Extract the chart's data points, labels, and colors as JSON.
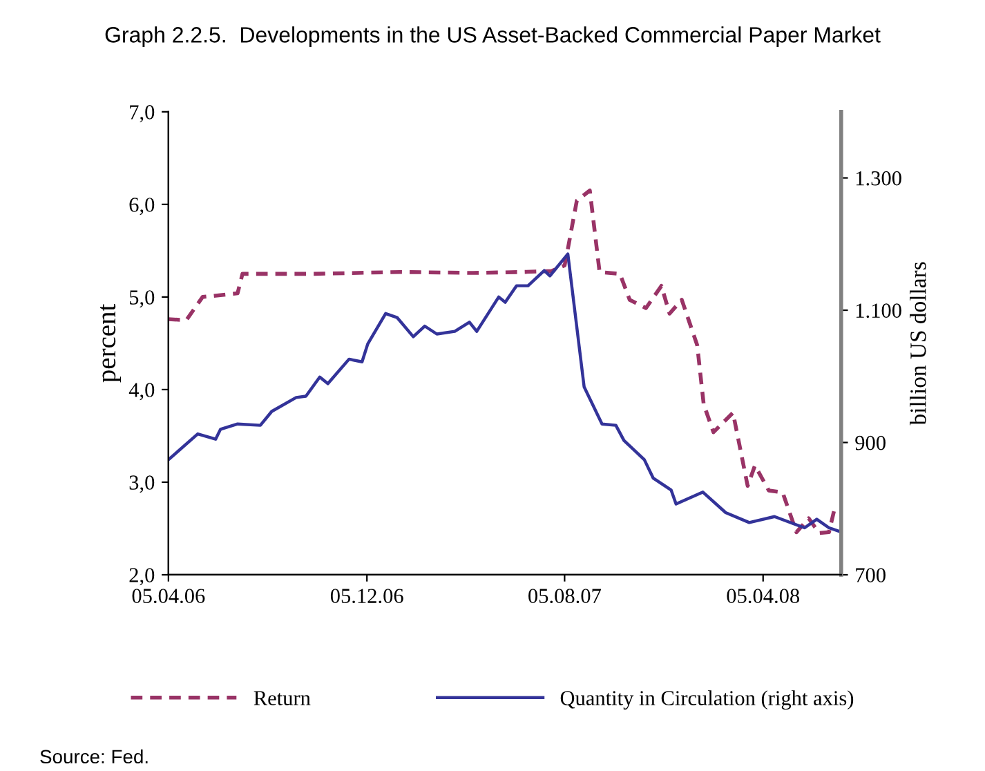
{
  "chart_data": {
    "type": "line",
    "title": "Graph 2.2.5.  Developments in the US Asset-Backed Commercial Paper Market",
    "ylabel": "percent",
    "y2label": "billion US dollars",
    "annotations": [
      "Source: Fed."
    ],
    "xlim": [
      "2006-04-05",
      "2008-07-10"
    ],
    "xticks": [
      {
        "value": "2006-04-05",
        "label": "05.04.06"
      },
      {
        "value": "2006-12-05",
        "label": "05.12.06"
      },
      {
        "value": "2007-08-05",
        "label": "05.08.07"
      },
      {
        "value": "2008-04-05",
        "label": "05.04.08"
      }
    ],
    "ylim": [
      2,
      7
    ],
    "yticks": [
      {
        "value": 2,
        "label": "2,0"
      },
      {
        "value": 3,
        "label": "3,0"
      },
      {
        "value": 4,
        "label": "4,0"
      },
      {
        "value": 5,
        "label": "5,0"
      },
      {
        "value": 6,
        "label": "6,0"
      },
      {
        "value": 7,
        "label": "7,0"
      }
    ],
    "y2lim": [
      700,
      1400
    ],
    "y2ticks": [
      700,
      900,
      {
        "value": 1100,
        "label": "1.100"
      },
      {
        "value": 1300,
        "label": "1.300"
      }
    ],
    "grid": false,
    "legend": "bottom",
    "marker": "none",
    "series": [
      {
        "name": "Return",
        "color": "#993366",
        "line_style": "dashed",
        "x": [
          "2006-04-05",
          "2006-04-27",
          "2006-05-17",
          "2006-06-29",
          "2006-07-05",
          "2006-10-01",
          "2007-01-15",
          "2007-04-15",
          "2007-06-15",
          "2007-07-20",
          "2007-08-05",
          "2007-08-09",
          "2007-08-20",
          "2007-09-05",
          "2007-09-17",
          "2007-10-12",
          "2007-10-24",
          "2007-11-13",
          "2007-12-02",
          "2007-12-12",
          "2007-12-27",
          "2008-01-15",
          "2008-01-23",
          "2008-02-04",
          "2008-02-28",
          "2008-03-17",
          "2008-03-26",
          "2008-04-12",
          "2008-04-29",
          "2008-05-16",
          "2008-05-31",
          "2008-06-13",
          "2008-06-25",
          "2008-07-02"
        ],
        "values": [
          4.76,
          4.75,
          5.0,
          5.04,
          5.25,
          5.25,
          5.27,
          5.26,
          5.27,
          5.28,
          5.34,
          5.52,
          6.04,
          6.15,
          5.27,
          5.25,
          4.97,
          4.88,
          5.12,
          4.82,
          4.97,
          4.48,
          3.84,
          3.54,
          3.75,
          2.96,
          3.18,
          2.91,
          2.89,
          2.46,
          2.61,
          2.45,
          2.46,
          2.72
        ]
      },
      {
        "name": "Quantity in Circulation (right axis)",
        "color": "#333399",
        "line_style": "solid",
        "axis": "y2",
        "x": [
          "2006-04-05",
          "2006-05-11",
          "2006-06-02",
          "2006-06-08",
          "2006-06-29",
          "2006-07-27",
          "2006-08-10",
          "2006-09-09",
          "2006-09-21",
          "2006-10-08",
          "2006-10-18",
          "2006-11-13",
          "2006-11-29",
          "2006-12-06",
          "2006-12-28",
          "2007-01-11",
          "2007-01-31",
          "2007-02-14",
          "2007-03-01",
          "2007-03-23",
          "2007-04-10",
          "2007-04-19",
          "2007-05-16",
          "2007-05-24",
          "2007-06-07",
          "2007-06-21",
          "2007-07-11",
          "2007-07-18",
          "2007-08-09",
          "2007-08-29",
          "2007-09-20",
          "2007-10-07",
          "2007-10-17",
          "2007-11-11",
          "2007-11-22",
          "2007-12-14",
          "2007-12-20",
          "2008-01-22",
          "2008-02-19",
          "2008-03-19",
          "2008-04-19",
          "2008-05-26",
          "2008-06-10",
          "2008-06-25",
          "2008-07-09"
        ],
        "values": [
          874,
          913,
          905,
          920,
          928,
          926,
          947,
          968,
          970,
          999,
          989,
          1026,
          1022,
          1049,
          1095,
          1089,
          1060,
          1076,
          1064,
          1068,
          1082,
          1068,
          1120,
          1112,
          1137,
          1137,
          1160,
          1152,
          1185,
          984,
          928,
          926,
          903,
          874,
          846,
          828,
          807,
          825,
          794,
          779,
          788,
          771,
          784,
          771,
          765
        ]
      }
    ]
  }
}
